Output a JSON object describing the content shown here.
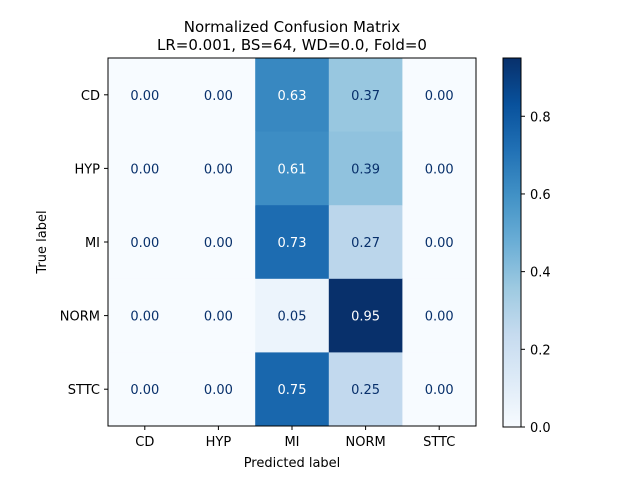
{
  "chart_data": {
    "type": "heatmap",
    "title_line1": "Normalized Confusion Matrix",
    "title_line2": "LR=0.001, BS=64, WD=0.0, Fold=0",
    "xlabel": "Predicted label",
    "ylabel": "True label",
    "row_labels": [
      "CD",
      "HYP",
      "MI",
      "NORM",
      "STTC"
    ],
    "col_labels": [
      "CD",
      "HYP",
      "MI",
      "NORM",
      "STTC"
    ],
    "values": [
      [
        0.0,
        0.0,
        0.63,
        0.37,
        0.0
      ],
      [
        0.0,
        0.0,
        0.61,
        0.39,
        0.0
      ],
      [
        0.0,
        0.0,
        0.73,
        0.27,
        0.0
      ],
      [
        0.0,
        0.0,
        0.05,
        0.95,
        0.0
      ],
      [
        0.0,
        0.0,
        0.75,
        0.25,
        0.0
      ]
    ],
    "colorscale": "Blues",
    "vmin": 0.0,
    "vmax": 0.95,
    "colorbar_ticks": [
      "0.0",
      "0.2",
      "0.4",
      "0.6",
      "0.8"
    ],
    "colorbar_tick_values": [
      0.0,
      0.2,
      0.4,
      0.6,
      0.8
    ]
  }
}
